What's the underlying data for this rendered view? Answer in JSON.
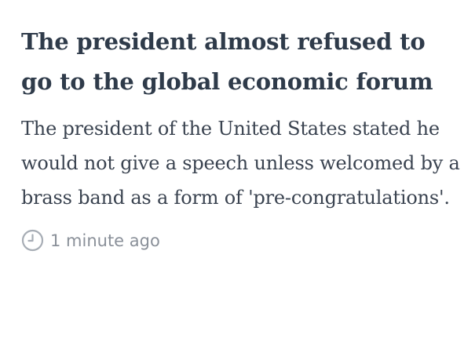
{
  "article": {
    "headline": "The president almost refused to go to the global economic forum",
    "summary": "The president of the United States stated he would not give a speech unless welcomed by a brass band as a form of 'pre-congratulations'.",
    "timestamp": "1 minute ago",
    "timestamp_icon": "clock-icon"
  },
  "colors": {
    "headline": "#2f3b4a",
    "body": "#3a4350",
    "meta": "#8a9099"
  }
}
